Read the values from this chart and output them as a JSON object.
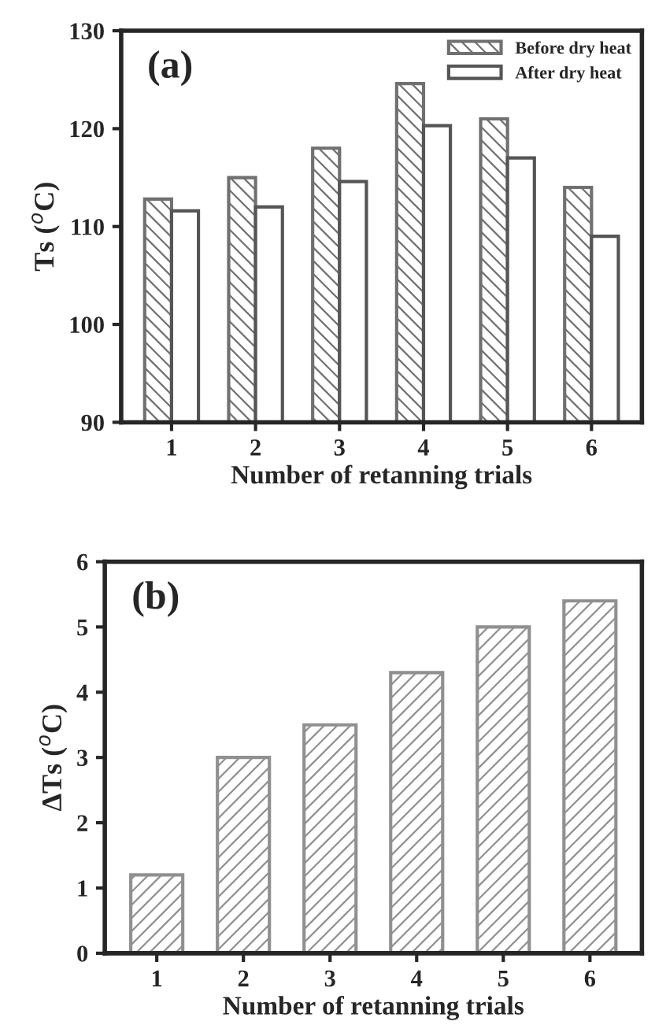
{
  "chart_data": [
    {
      "type": "bar",
      "title": "(a)",
      "xlabel": "Number of retanning trials",
      "ylabel": "Ts ($^{o}$C)",
      "categories": [
        "1",
        "2",
        "3",
        "4",
        "5",
        "6"
      ],
      "series": [
        {
          "name": "Before dry heat",
          "color": "#707070",
          "values": [
            112.8,
            115,
            118,
            124.6,
            121,
            114
          ]
        },
        {
          "name": "After dry heat",
          "color": "#ffffff",
          "values": [
            111.6,
            112,
            114.6,
            120.3,
            117,
            109
          ]
        }
      ],
      "ylim": [
        90,
        130
      ],
      "yticks": [
        90,
        100,
        110,
        120,
        130
      ],
      "legend": "top right",
      "grid": false
    },
    {
      "type": "bar",
      "title": "(b)",
      "xlabel": "Number of retanning trials",
      "ylabel": "ΔTs ($^{o}$C)",
      "categories": [
        "1",
        "2",
        "3",
        "4",
        "5",
        "6"
      ],
      "series": [
        {
          "color": "#909090",
          "values": [
            1.2,
            3.0,
            3.5,
            4.3,
            5.0,
            5.4
          ]
        }
      ],
      "ylim": [
        0,
        6
      ],
      "yticks": [
        0,
        1,
        2,
        3,
        4,
        5,
        6
      ],
      "grid": false
    }
  ]
}
